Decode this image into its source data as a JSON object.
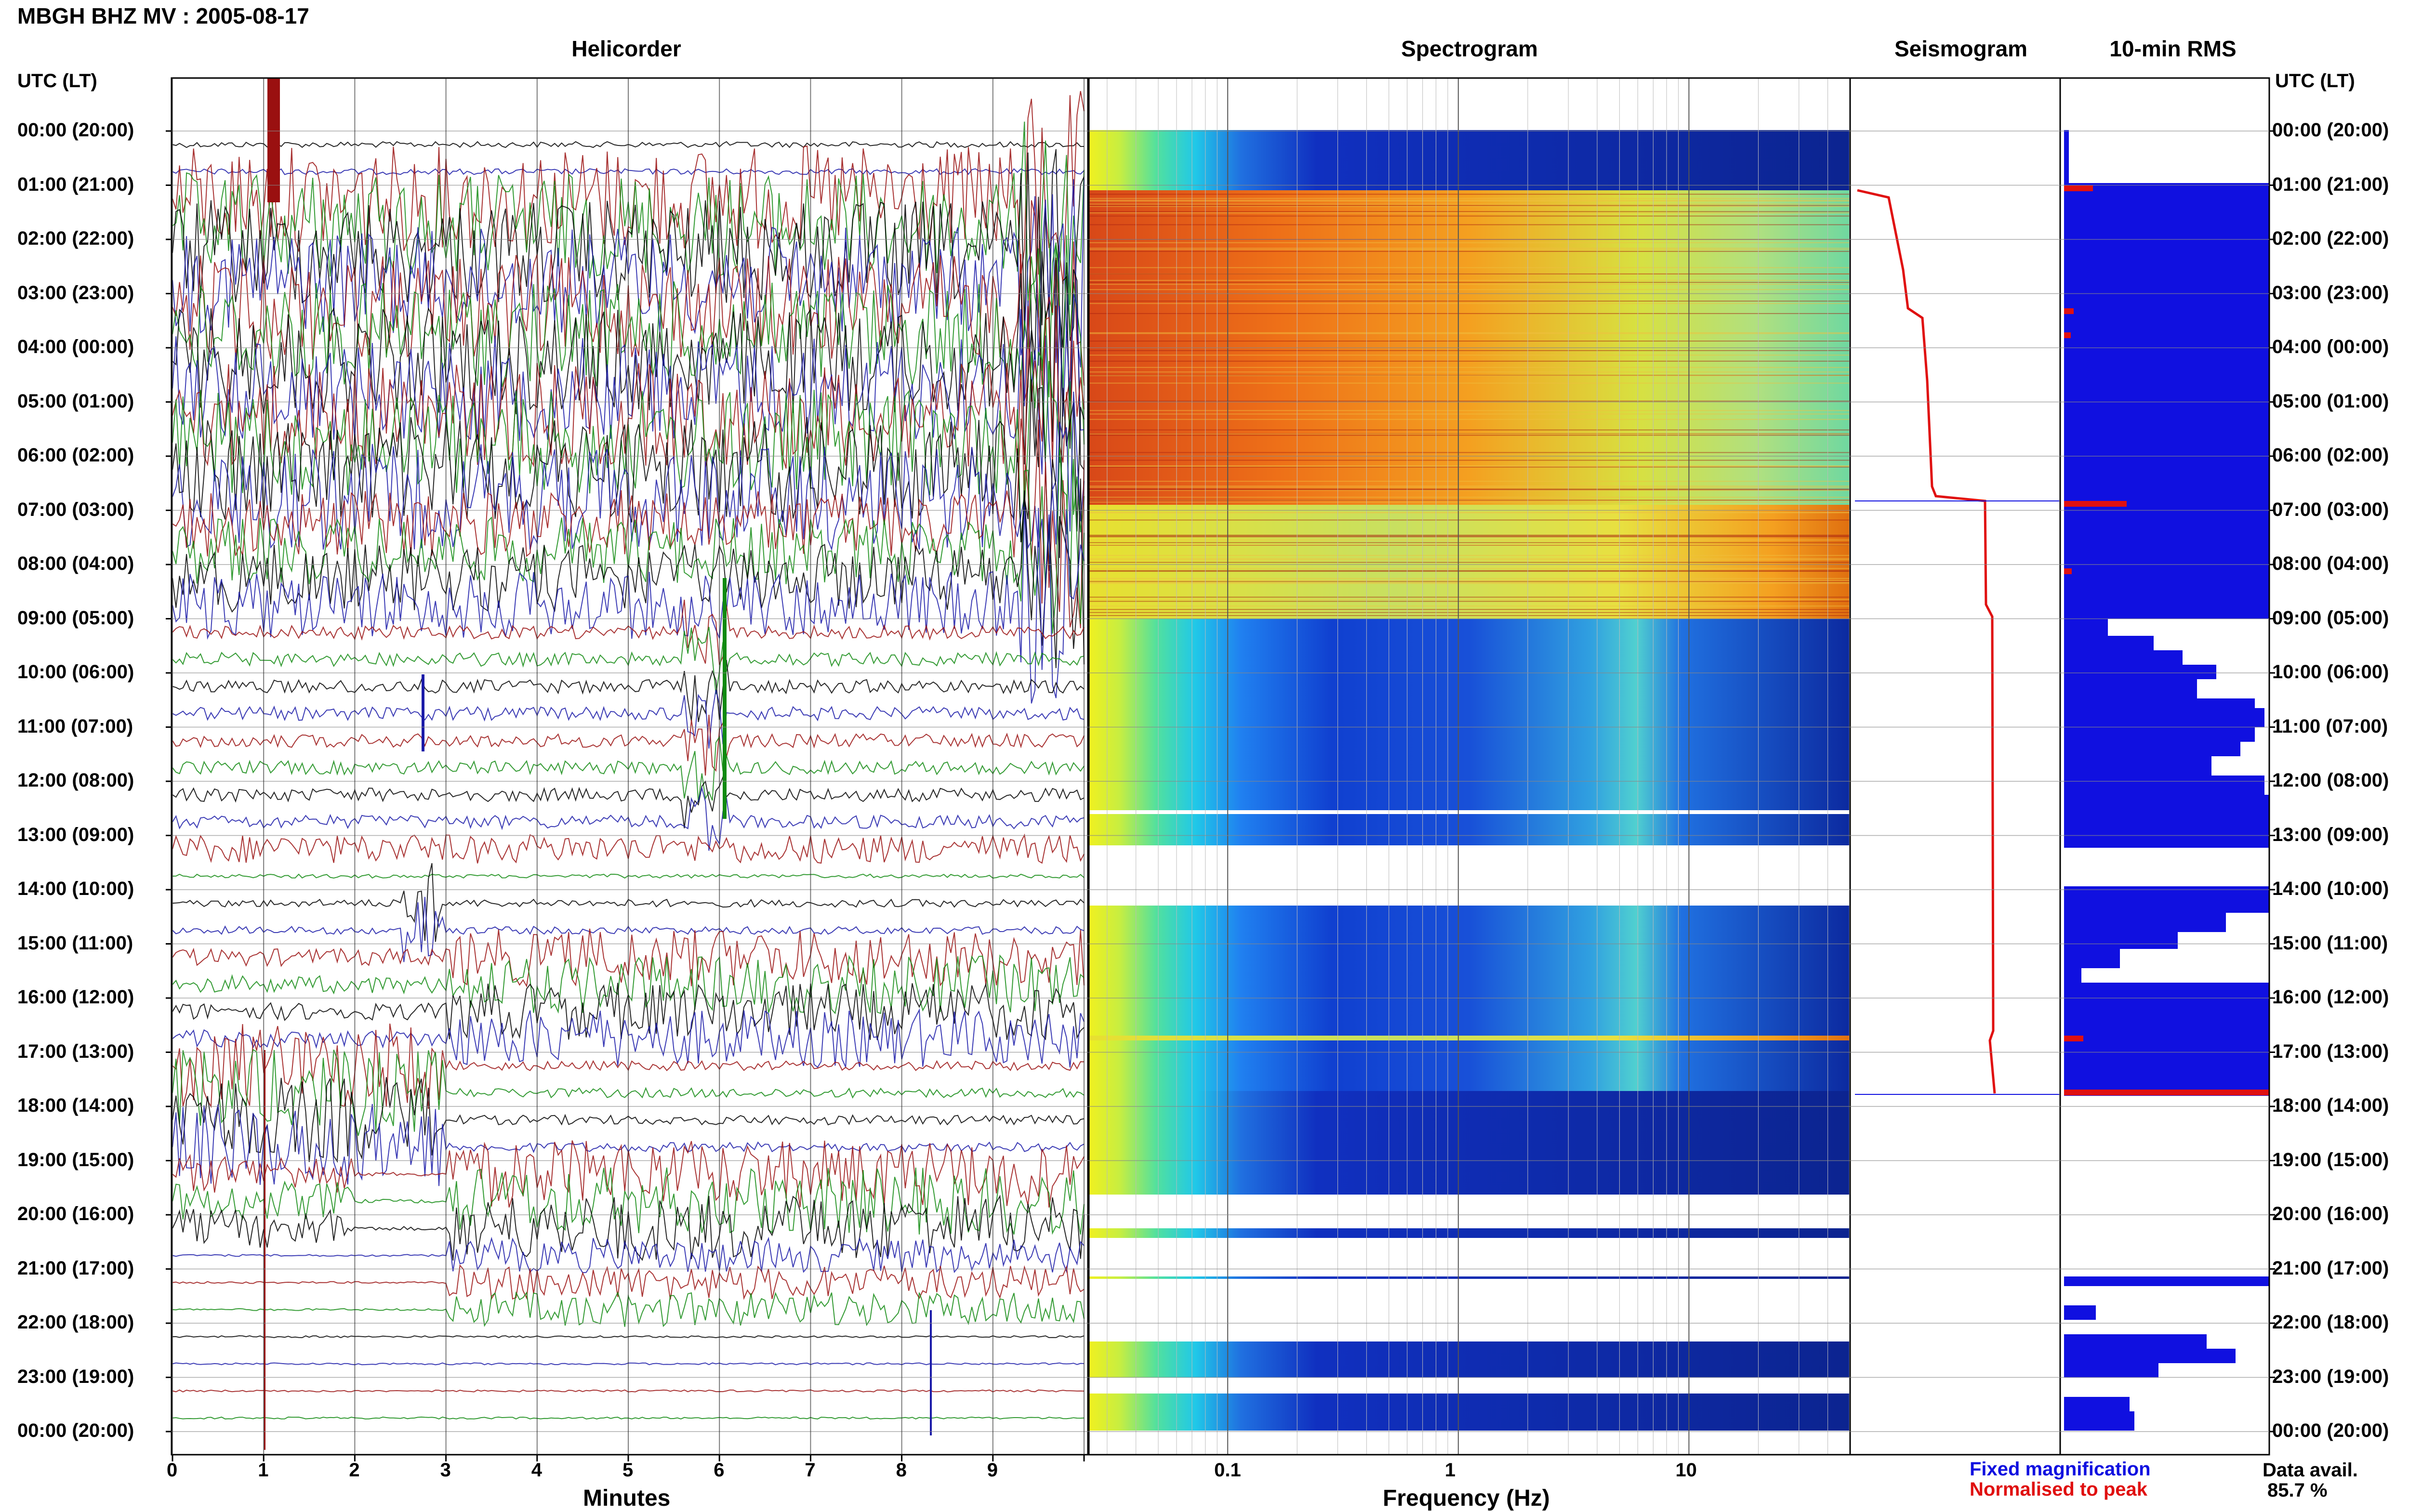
{
  "title": "MBGH BHZ MV : 2005-08-17",
  "panels": {
    "helicorder": "Helicorder",
    "spectrogram": "Spectrogram",
    "seismogram": "Seismogram",
    "rms": "10-min RMS"
  },
  "axis": {
    "utc_lt_left": "UTC (LT)",
    "utc_lt_right": "UTC (LT)",
    "minutes_label": "Minutes",
    "frequency_label": "Frequency (Hz)"
  },
  "legend": {
    "fixed": "Fixed magnification",
    "normalised": "Normalised to peak",
    "data_avail_label": "Data avail.",
    "data_avail_value": "85.7 %"
  },
  "colors": {
    "fixed": "#1010e0",
    "normalised": "#e01010",
    "trace": [
      "#000000",
      "#1a1aa8",
      "#9a1010",
      "#108a10"
    ]
  },
  "chart_data": [
    {
      "type": "line",
      "panel": "Helicorder",
      "xlabel": "Minutes",
      "x_ticks": [
        "0",
        "1",
        "2",
        "3",
        "4",
        "5",
        "6",
        "7",
        "8",
        "9"
      ],
      "xlim": [
        0,
        10
      ],
      "y_ticks": [
        "00:00 (20:00)",
        "01:00 (21:00)",
        "02:00 (22:00)",
        "03:00 (23:00)",
        "04:00 (00:00)",
        "05:00 (01:00)",
        "06:00 (02:00)",
        "07:00 (03:00)",
        "08:00 (04:00)",
        "09:00 (05:00)",
        "10:00 (06:00)",
        "11:00 (07:00)",
        "12:00 (08:00)",
        "13:00 (09:00)",
        "14:00 (10:00)",
        "15:00 (11:00)",
        "16:00 (12:00)",
        "17:00 (13:00)",
        "18:00 (14:00)",
        "19:00 (15:00)",
        "20:00 (16:00)",
        "21:00 (17:00)",
        "22:00 (18:00)",
        "23:00 (19:00)",
        "00:00 (20:00)"
      ]
    },
    {
      "type": "heatmap",
      "panel": "Spectrogram",
      "xlabel": "Frequency (Hz)",
      "x_scale": "log",
      "x_ticks": [
        "0.1",
        "1",
        "10"
      ],
      "xlim": [
        0.025,
        50
      ]
    },
    {
      "type": "line",
      "panel": "Seismogram"
    },
    {
      "type": "bar",
      "panel": "10-min RMS"
    }
  ]
}
